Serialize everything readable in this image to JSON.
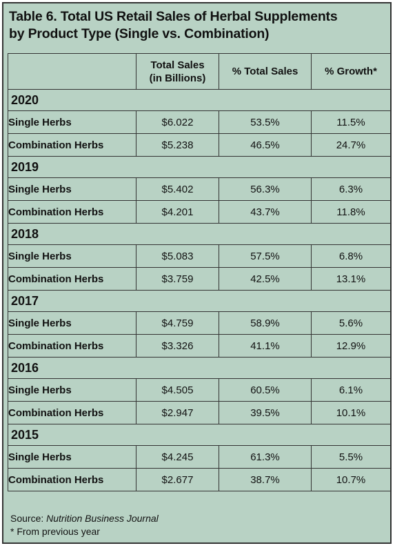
{
  "title": {
    "line1": "Table 6. Total US Retail Sales of Herbal Supplements",
    "line2": "by Product Type (Single vs. Combination)"
  },
  "headers": {
    "col1": "",
    "col2_line1": "Total Sales",
    "col2_line2": "(in Billions)",
    "col3": "% Total Sales",
    "col4": "% Growth*"
  },
  "years": [
    {
      "year": "2020",
      "rows": [
        {
          "label": "Single Herbs",
          "sales": "$6.022",
          "pct": "53.5%",
          "growth": "11.5%"
        },
        {
          "label": "Combination Herbs",
          "sales": "$5.238",
          "pct": "46.5%",
          "growth": "24.7%"
        }
      ]
    },
    {
      "year": "2019",
      "rows": [
        {
          "label": "Single Herbs",
          "sales": "$5.402",
          "pct": "56.3%",
          "growth": "6.3%"
        },
        {
          "label": "Combination Herbs",
          "sales": "$4.201",
          "pct": "43.7%",
          "growth": "11.8%"
        }
      ]
    },
    {
      "year": "2018",
      "rows": [
        {
          "label": "Single Herbs",
          "sales": "$5.083",
          "pct": "57.5%",
          "growth": "6.8%"
        },
        {
          "label": "Combination Herbs",
          "sales": "$3.759",
          "pct": "42.5%",
          "growth": "13.1%"
        }
      ]
    },
    {
      "year": "2017",
      "rows": [
        {
          "label": "Single Herbs",
          "sales": "$4.759",
          "pct": "58.9%",
          "growth": "5.6%"
        },
        {
          "label": "Combination Herbs",
          "sales": "$3.326",
          "pct": "41.1%",
          "growth": "12.9%"
        }
      ]
    },
    {
      "year": "2016",
      "rows": [
        {
          "label": "Single Herbs",
          "sales": "$4.505",
          "pct": "60.5%",
          "growth": "6.1%"
        },
        {
          "label": "Combination Herbs",
          "sales": "$2.947",
          "pct": "39.5%",
          "growth": "10.1%"
        }
      ]
    },
    {
      "year": "2015",
      "rows": [
        {
          "label": "Single Herbs",
          "sales": "$4.245",
          "pct": "61.3%",
          "growth": "5.5%"
        },
        {
          "label": "Combination Herbs",
          "sales": "$2.677",
          "pct": "38.7%",
          "growth": "10.7%"
        }
      ]
    }
  ],
  "footer": {
    "source_label": "Source:",
    "source_name": "Nutrition Business Journal",
    "note": "* From previous year"
  },
  "colors": {
    "background": "#b8d2c4",
    "border": "#333333"
  }
}
